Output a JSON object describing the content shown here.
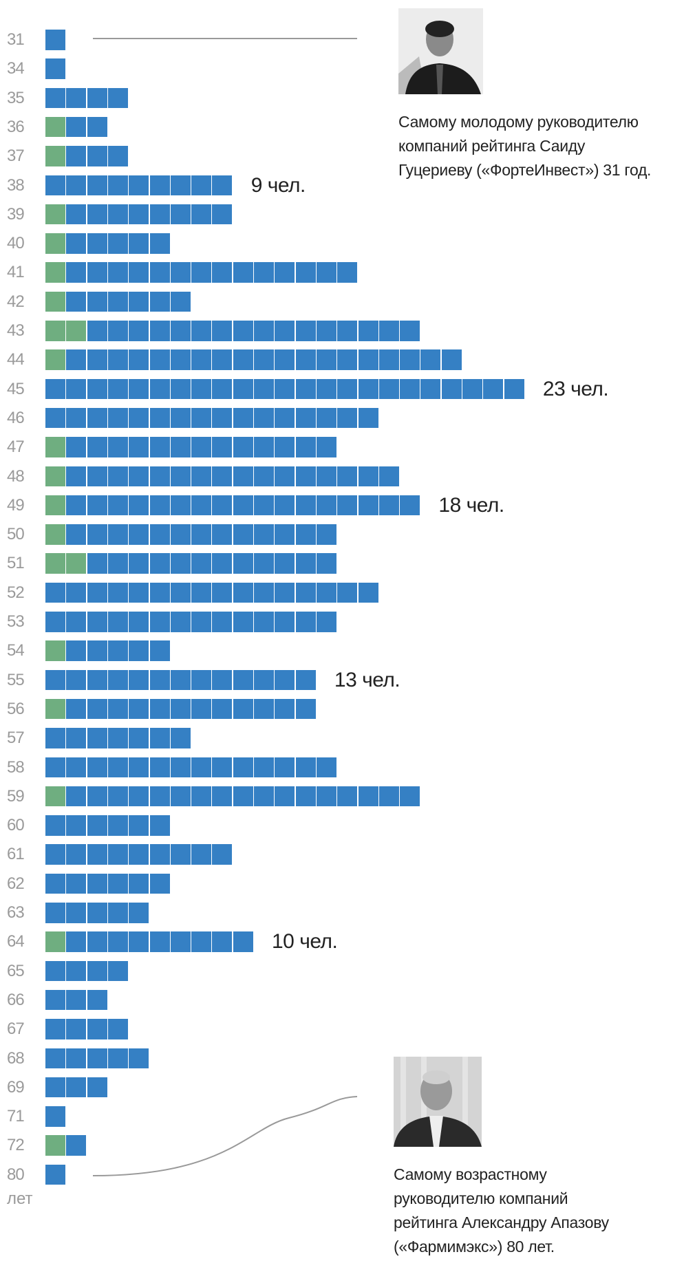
{
  "chart_data": {
    "type": "bar",
    "subtype": "stacked-unit-squares (waffle bar)",
    "ylabel": "лет",
    "categories": [
      "31",
      "34",
      "35",
      "36",
      "37",
      "38",
      "39",
      "40",
      "41",
      "42",
      "43",
      "44",
      "45",
      "46",
      "47",
      "48",
      "49",
      "50",
      "51",
      "52",
      "53",
      "54",
      "55",
      "56",
      "57",
      "58",
      "59",
      "60",
      "61",
      "62",
      "63",
      "64",
      "65",
      "66",
      "67",
      "68",
      "69",
      "71",
      "72",
      "80"
    ],
    "series": [
      {
        "color": "#6fae80",
        "values": [
          0,
          0,
          0,
          1,
          1,
          0,
          1,
          1,
          1,
          1,
          2,
          1,
          0,
          0,
          1,
          1,
          1,
          1,
          2,
          0,
          0,
          1,
          0,
          1,
          0,
          0,
          1,
          0,
          0,
          0,
          0,
          1,
          0,
          0,
          0,
          0,
          0,
          0,
          1,
          0
        ]
      },
      {
        "color": "#3580c4",
        "values": [
          1,
          1,
          4,
          2,
          3,
          9,
          8,
          5,
          14,
          6,
          16,
          19,
          23,
          16,
          13,
          16,
          17,
          13,
          12,
          16,
          14,
          5,
          13,
          12,
          7,
          14,
          17,
          6,
          9,
          6,
          5,
          9,
          4,
          3,
          4,
          5,
          3,
          1,
          1,
          1
        ]
      }
    ],
    "annotations": [
      {
        "category": "38",
        "text": "9 чел."
      },
      {
        "category": "45",
        "text": "23 чел."
      },
      {
        "category": "49",
        "text": "18 чел."
      },
      {
        "category": "55",
        "text": "13 чел."
      },
      {
        "category": "64",
        "text": "10 чел."
      }
    ],
    "grid": false,
    "legend": "none"
  },
  "callouts": {
    "youngest": {
      "category": "31",
      "lines": [
        "Самому молодому руководителю",
        "компаний рейтинга Саиду",
        "Гуцериеву («ФортеИнвест») 31 год."
      ]
    },
    "oldest": {
      "category": "80",
      "lines": [
        "Самому возрастному",
        "руководителю компаний",
        "рейтинга Александру Апазову",
        "(«Фармимэкс») 80 лет."
      ]
    }
  },
  "colors": {
    "blue": "#3580c4",
    "green": "#6fae80",
    "axis_text": "#9a9a9a",
    "connector": "#999999"
  }
}
